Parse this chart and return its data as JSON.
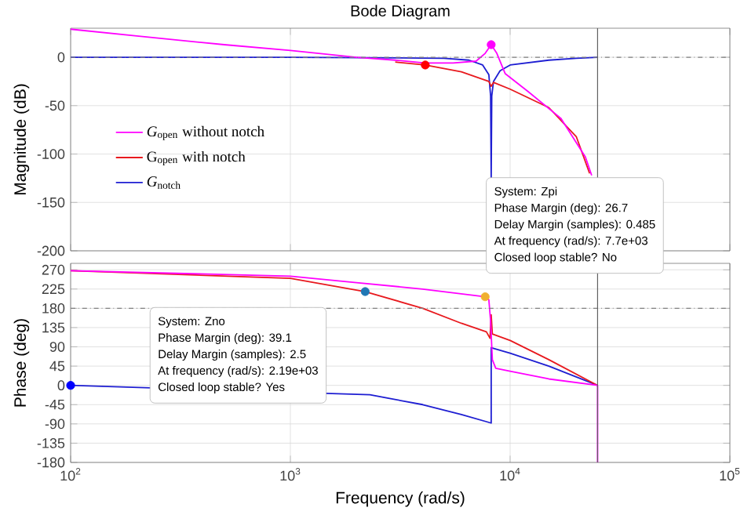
{
  "chart_data": [
    {
      "type": "line",
      "title": "Bode Diagram",
      "ylabel": "Magnitude (dB)",
      "log": "x",
      "grid": true,
      "legend": "left",
      "tick_labels": "y",
      "xlim": [
        100,
        100000
      ],
      "xticks": [
        {
          "value": 100,
          "label": null
        },
        {
          "value": 1000,
          "label": null
        },
        {
          "value": 10000,
          "label": null
        },
        {
          "value": 100000,
          "label": null
        }
      ],
      "ylim": [
        -200,
        30
      ],
      "yticks": [
        -200,
        -150,
        -100,
        -50,
        0
      ],
      "series": [
        {
          "name": "*G*$_{open}$ without notch",
          "color": "#ff00ff",
          "x": [
            100,
            200,
            500,
            1000,
            2000,
            3000,
            4100,
            5500,
            7000,
            7700,
            8200,
            8700,
            9500,
            12000,
            17000,
            22000,
            23500
          ],
          "values": [
            29,
            22,
            13,
            7,
            0,
            -3,
            -6,
            -6,
            -4,
            4,
            13,
            4,
            -17,
            -35,
            -63,
            -103,
            -122
          ]
        },
        {
          "name": "G$_{open}$ with notch",
          "color": "#e8191e",
          "x": [
            3000,
            4100,
            6000,
            8000,
            8200,
            8400,
            10000,
            15000,
            20000,
            23000
          ],
          "values": [
            -5,
            -8,
            -15,
            -25,
            -30,
            -26,
            -33,
            -52,
            -82,
            -120
          ]
        },
        {
          "name": "*G*$_{notch}$",
          "color": "#1e1ed2",
          "x": [
            100,
            1000,
            5000,
            6500,
            7500,
            8000,
            8150,
            8200,
            8250,
            8400,
            9000,
            10000,
            15000,
            20000,
            25000
          ],
          "values": [
            0,
            0,
            -1,
            -3,
            -8,
            -18,
            -40,
            -125,
            -40,
            -25,
            -14,
            -8,
            -3,
            -1,
            0
          ]
        },
        {
          "type": "scatter",
          "color": "#ff0000",
          "x": [
            4110
          ],
          "values": [
            -8
          ]
        },
        {
          "type": "scatter",
          "color": "#ff00ff",
          "x": [
            8200
          ],
          "values": [
            13
          ]
        }
      ],
      "ref_lines": [
        {
          "axis": "y",
          "value": 0,
          "color": "#808080",
          "line_style": "dashdot"
        },
        {
          "axis": "x",
          "value": 25000,
          "color": "#606060",
          "line_style": "solid"
        }
      ],
      "annotations": [
        "System: Zpi",
        "Phase Margin (deg): 26.7",
        "Delay Margin (samples): 0.485",
        "At frequency (rad/s): 7.7e+03",
        "Closed loop stable? No"
      ]
    },
    {
      "type": "line",
      "xlabel": "Frequency  (rad/s)",
      "ylabel": "Phase (deg)",
      "log": "x",
      "grid": true,
      "xlim": [
        100,
        100000
      ],
      "xticks": [
        {
          "value": 100,
          "label": "10$^{2}$"
        },
        {
          "value": 1000,
          "label": "10$^{3}$"
        },
        {
          "value": 10000,
          "label": "10$^{4}$"
        },
        {
          "value": 100000,
          "label": "10$^{5}$"
        }
      ],
      "ylim": [
        -180,
        285
      ],
      "yticks": [
        -180,
        -135,
        -90,
        -45,
        0,
        45,
        90,
        135,
        180,
        225,
        270
      ],
      "series": [
        {
          "color": "#ff00ff",
          "x": [
            100,
            1000,
            2000,
            4000,
            7700,
            8000,
            8150,
            8300,
            8600,
            10000,
            15000,
            25000,
            25000
          ],
          "values": [
            268,
            255,
            240,
            225,
            207,
            200,
            150,
            60,
            40,
            33,
            15,
            0,
            -180
          ]
        },
        {
          "color": "#e8191e",
          "x": [
            100,
            500,
            1000,
            2190,
            4000,
            6000,
            7800,
            8100,
            8200,
            8300,
            10000,
            15000,
            25000
          ],
          "values": [
            268,
            null,
            250,
            219,
            180,
            145,
            125,
            110,
            165,
            120,
            105,
            60,
            0
          ]
        },
        {
          "color": "#1e1ed2",
          "x": [
            100,
            2300,
            4000,
            6000,
            8200,
            8200,
            10000,
            15000,
            25000
          ],
          "values": [
            0,
            -22,
            -45,
            -68,
            -88,
            88,
            75,
            45,
            0
          ]
        },
        {
          "type": "scatter",
          "color": "#0000ff",
          "x": [
            100
          ],
          "values": [
            0
          ]
        },
        {
          "type": "scatter",
          "color": "#1f77b4",
          "x": [
            2190
          ],
          "values": [
            219
          ]
        },
        {
          "type": "scatter",
          "color": "#f0b030",
          "x": [
            7700
          ],
          "values": [
            207
          ]
        }
      ],
      "ref_lines": [
        {
          "axis": "y",
          "value": 180,
          "color": "#808080",
          "line_style": "dashdot"
        },
        {
          "axis": "x",
          "value": 25000,
          "color": "#606060",
          "line_style": "solid"
        }
      ],
      "annotations": [
        "System: Zno",
        "Phase Margin (deg): 39.1",
        "Delay Margin (samples): 2.5",
        "At frequency (rad/s): 2.19e+03",
        "Closed loop stable? Yes"
      ]
    }
  ]
}
